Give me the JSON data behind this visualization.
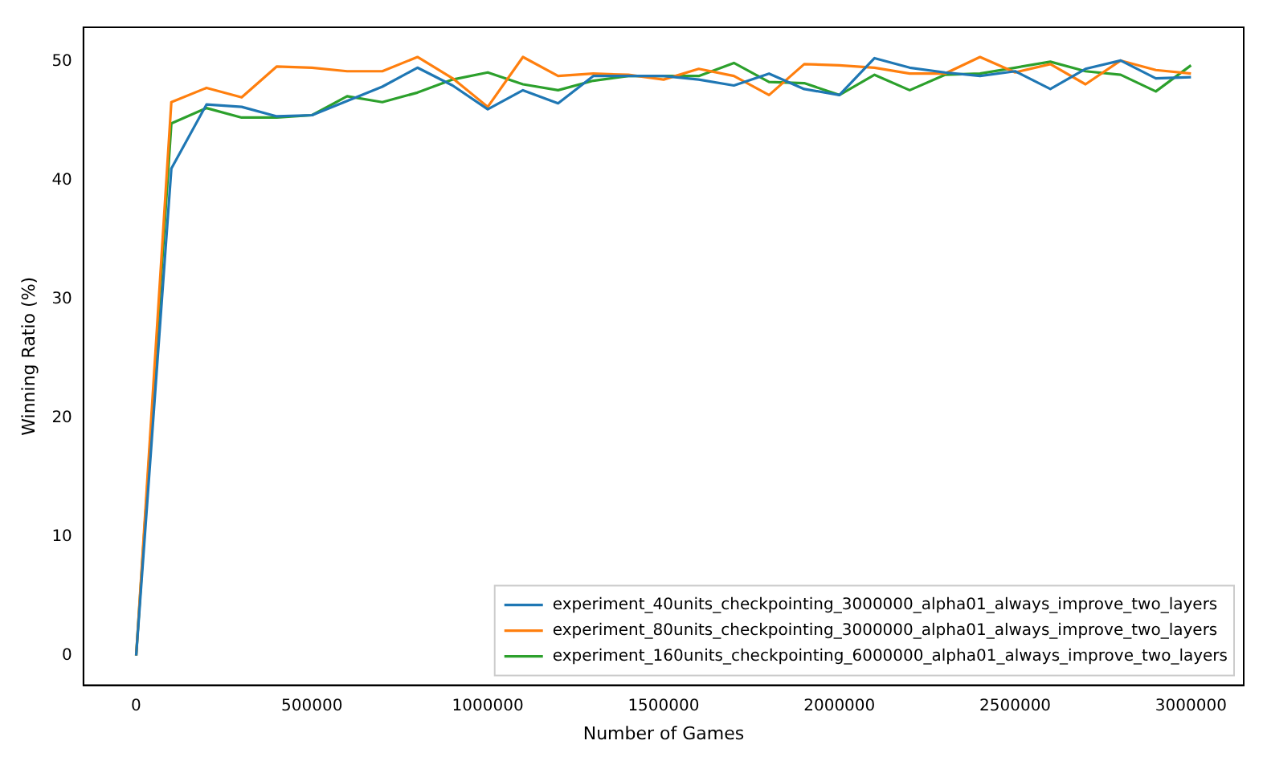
{
  "chart_data": {
    "type": "line",
    "xlabel": "Number of Games",
    "ylabel": "Winning Ratio (%)",
    "x": [
      0,
      100000,
      200000,
      300000,
      400000,
      500000,
      600000,
      700000,
      800000,
      900000,
      1000000,
      1100000,
      1200000,
      1300000,
      1400000,
      1500000,
      1600000,
      1700000,
      1800000,
      1900000,
      2000000,
      2100000,
      2200000,
      2300000,
      2400000,
      2500000,
      2600000,
      2700000,
      2800000,
      2900000,
      3000000
    ],
    "series": [
      {
        "name": "experiment_40units_checkpointing_3000000_alpha01_always_improve_two_layers",
        "color": "#1f77b4",
        "values": [
          0,
          41,
          46.4,
          46.2,
          45.4,
          45.5,
          46.7,
          47.9,
          49.5,
          48,
          46,
          47.6,
          46.5,
          48.8,
          48.8,
          48.8,
          48.5,
          48,
          49,
          47.7,
          47.2,
          50.3,
          49.5,
          49.1,
          48.8,
          49.2,
          47.7,
          49.4,
          50.1,
          48.6,
          48.7
        ]
      },
      {
        "name": "experiment_80units_checkpointing_3000000_alpha01_always_improve_two_layers",
        "color": "#ff7f0e",
        "values": [
          0,
          46.6,
          47.8,
          47,
          49.6,
          49.5,
          49.2,
          49.2,
          50.4,
          48.6,
          46.2,
          50.4,
          48.8,
          49,
          48.9,
          48.5,
          49.4,
          48.8,
          47.2,
          49.8,
          49.7,
          49.5,
          49,
          49,
          50.4,
          49.1,
          49.8,
          48.1,
          50.1,
          49.3,
          49
        ]
      },
      {
        "name": "experiment_160units_checkpointing_6000000_alpha01_always_improve_two_layers",
        "color": "#2ca02c",
        "values": [
          0,
          44.8,
          46.1,
          45.3,
          45.3,
          45.5,
          47.1,
          46.6,
          47.4,
          48.5,
          49.1,
          48.1,
          47.6,
          48.4,
          48.8,
          48.8,
          48.8,
          49.9,
          48.3,
          48.2,
          47.2,
          48.9,
          47.6,
          48.9,
          49,
          49.5,
          50,
          49.2,
          48.9,
          47.5,
          49.7
        ]
      }
    ],
    "xlim": [
      -150000,
      3150000
    ],
    "xticks": [
      0,
      500000,
      1000000,
      1500000,
      2000000,
      2500000,
      3000000
    ],
    "ylim": [
      -2.5,
      52.9
    ],
    "yticks": [
      0,
      10,
      20,
      30,
      40,
      50
    ],
    "legend": "bottom right",
    "grid": false,
    "marker": "none",
    "line_style": "solid"
  }
}
